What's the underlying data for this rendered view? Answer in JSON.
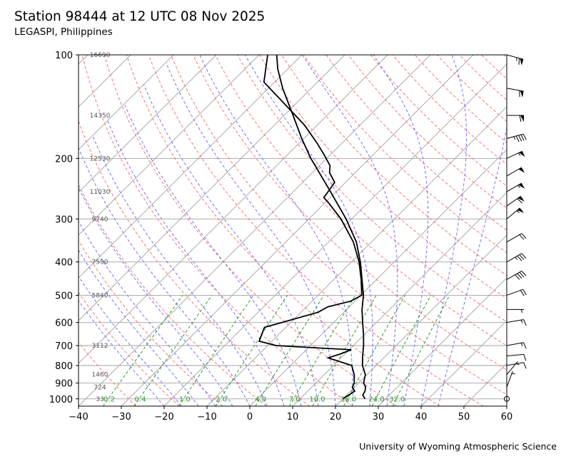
{
  "header": {
    "title": "Station 98444 at 12 UTC 08 Nov 2025",
    "subtitle": "LEGASPI, Philippines"
  },
  "footer": {
    "credit": "University of Wyoming Atmospheric Science"
  },
  "colors": {
    "temperature": "#000000",
    "dewpoint": "#000000",
    "isotherm": "#a0a0a0",
    "dry_adiabat": "#ff7070",
    "moist_adiabat": "#7070ff",
    "mixing_ratio": "#2e9a2e",
    "height_label": "#555555"
  },
  "chart_data": {
    "type": "skew-t",
    "xlabel": "",
    "ylabel": "",
    "xlim": [
      -40,
      60
    ],
    "ylim": [
      1050,
      100
    ],
    "y_scale": "log",
    "x_ticks": [
      "−40",
      "−30",
      "−20",
      "−10",
      "0",
      "10",
      "20",
      "30",
      "40",
      "50",
      "60"
    ],
    "x_tick_values": [
      -40,
      -30,
      -20,
      -10,
      0,
      10,
      20,
      30,
      40,
      50,
      60
    ],
    "y_ticks": [
      "100",
      "200",
      "300",
      "400",
      "500",
      "600",
      "700",
      "800",
      "900",
      "1000"
    ],
    "y_tick_values": [
      100,
      200,
      300,
      400,
      500,
      600,
      700,
      800,
      900,
      1000
    ],
    "height_labels": [
      {
        "p": 100,
        "text": "16690"
      },
      {
        "p": 150,
        "text": "14350"
      },
      {
        "p": 200,
        "text": "12530"
      },
      {
        "p": 250,
        "text": "11030"
      },
      {
        "p": 300,
        "text": "9740"
      },
      {
        "p": 400,
        "text": "7590"
      },
      {
        "p": 500,
        "text": "5840"
      },
      {
        "p": 700,
        "text": "3112"
      },
      {
        "p": 850,
        "text": "1460"
      },
      {
        "p": 925,
        "text": "724"
      },
      {
        "p": 1000,
        "text": "33"
      }
    ],
    "mixing_ratio_labels": [
      {
        "w": 0.2,
        "text": "0.2"
      },
      {
        "w": 0.4,
        "text": "0.4"
      },
      {
        "w": 1.0,
        "text": "1.0"
      },
      {
        "w": 2.0,
        "text": "2.0"
      },
      {
        "w": 4.0,
        "text": "4.0"
      },
      {
        "w": 7.0,
        "text": "7.0"
      },
      {
        "w": 10.0,
        "text": "10.0"
      },
      {
        "w": 16.0,
        "text": "16.0"
      },
      {
        "w": 24.0,
        "text": "24.0"
      },
      {
        "w": 32.0,
        "text": "32.0"
      }
    ],
    "mixing_ratio_label_p": 990,
    "series": [
      {
        "id": "temperature",
        "points": [
          [
            1000,
            25.2
          ],
          [
            975,
            23.8
          ],
          [
            950,
            23.4
          ],
          [
            925,
            22.6
          ],
          [
            900,
            21.2
          ],
          [
            875,
            20.4
          ],
          [
            850,
            19.6
          ],
          [
            800,
            16.8
          ],
          [
            750,
            14.6
          ],
          [
            700,
            12.4
          ],
          [
            650,
            9.8
          ],
          [
            600,
            6.8
          ],
          [
            550,
            3.6
          ],
          [
            500,
            0.6
          ],
          [
            450,
            -3.4
          ],
          [
            400,
            -7.9
          ],
          [
            350,
            -13.5
          ],
          [
            300,
            -21.3
          ],
          [
            250,
            -31.3
          ],
          [
            200,
            -43.7
          ],
          [
            175,
            -50.5
          ],
          [
            150,
            -57.9
          ],
          [
            125,
            -66.7
          ],
          [
            110,
            -72.3
          ],
          [
            100,
            -75.9
          ]
        ]
      },
      {
        "id": "dewpoint",
        "points": [
          [
            1000,
            20.0
          ],
          [
            975,
            20.5
          ],
          [
            950,
            21.0
          ],
          [
            925,
            19.5
          ],
          [
            900,
            19.0
          ],
          [
            850,
            17.0
          ],
          [
            800,
            14.3
          ],
          [
            760,
            7.0
          ],
          [
            740,
            9.0
          ],
          [
            720,
            10.5
          ],
          [
            705,
            -3.5
          ],
          [
            700,
            -8.0
          ],
          [
            680,
            -13.0
          ],
          [
            620,
            -15.0
          ],
          [
            560,
            -6.0
          ],
          [
            540,
            -5.0
          ],
          [
            520,
            -1.0
          ],
          [
            500,
            0.2
          ],
          [
            450,
            -3.6
          ],
          [
            400,
            -8.2
          ],
          [
            350,
            -14.2
          ],
          [
            300,
            -22.5
          ],
          [
            270,
            -29.0
          ],
          [
            260,
            -31.5
          ],
          [
            235,
            -32.5
          ],
          [
            220,
            -36.0
          ],
          [
            210,
            -37.5
          ],
          [
            195,
            -41.5
          ],
          [
            180,
            -46.0
          ],
          [
            160,
            -53.0
          ],
          [
            135,
            -64.5
          ],
          [
            120,
            -72.5
          ],
          [
            100,
            -78.0
          ]
        ]
      }
    ],
    "wind_barbs": [
      {
        "p": 1000,
        "speed_kt": 0,
        "dir": 0
      },
      {
        "p": 925,
        "speed_kt": 5,
        "dir": 20
      },
      {
        "p": 850,
        "speed_kt": 5,
        "dir": 40
      },
      {
        "p": 800,
        "speed_kt": 10,
        "dir": 80
      },
      {
        "p": 750,
        "speed_kt": 10,
        "dir": 85
      },
      {
        "p": 700,
        "speed_kt": 15,
        "dir": 80
      },
      {
        "p": 600,
        "speed_kt": 15,
        "dir": 80
      },
      {
        "p": 550,
        "speed_kt": 5,
        "dir": 90
      },
      {
        "p": 500,
        "speed_kt": 20,
        "dir": 70
      },
      {
        "p": 450,
        "speed_kt": 40,
        "dir": 60
      },
      {
        "p": 400,
        "speed_kt": 35,
        "dir": 60
      },
      {
        "p": 350,
        "speed_kt": 20,
        "dir": 60
      },
      {
        "p": 300,
        "speed_kt": 55,
        "dir": 50
      },
      {
        "p": 275,
        "speed_kt": 60,
        "dir": 55
      },
      {
        "p": 250,
        "speed_kt": 55,
        "dir": 60
      },
      {
        "p": 225,
        "speed_kt": 50,
        "dir": 60
      },
      {
        "p": 200,
        "speed_kt": 55,
        "dir": 65
      },
      {
        "p": 175,
        "speed_kt": 45,
        "dir": 75
      },
      {
        "p": 150,
        "speed_kt": 60,
        "dir": 90
      },
      {
        "p": 125,
        "speed_kt": 60,
        "dir": 100
      },
      {
        "p": 100,
        "speed_kt": 65,
        "dir": 105
      }
    ],
    "station_circle_p": 1000
  }
}
